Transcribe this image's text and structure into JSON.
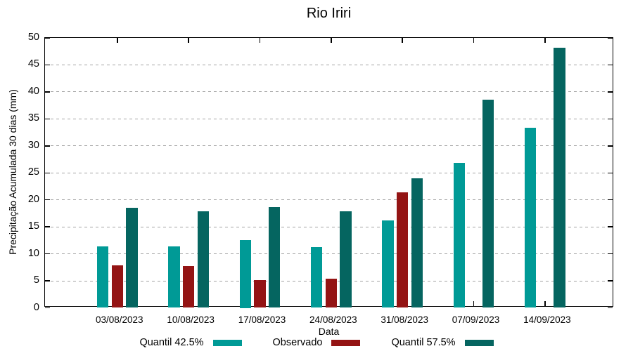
{
  "chart_data": {
    "type": "bar",
    "title": "Rio Iriri",
    "xlabel": "Data",
    "ylabel": "Precipitação Acumulada 30 dias (mm)",
    "ylim": [
      0,
      50
    ],
    "yticks": [
      0,
      5,
      10,
      15,
      20,
      25,
      30,
      35,
      40,
      45,
      50
    ],
    "grid": true,
    "legend_position": "bottom",
    "categories": [
      "03/08/2023",
      "10/08/2023",
      "17/08/2023",
      "24/08/2023",
      "31/08/2023",
      "07/09/2023",
      "14/09/2023"
    ],
    "series": [
      {
        "name": "Quantil 42.5%",
        "color": "#009a96",
        "values": [
          11.4,
          11.4,
          12.5,
          11.3,
          16.2,
          26.9,
          33.4
        ]
      },
      {
        "name": "Observado",
        "color": "#941414",
        "values": [
          7.9,
          7.7,
          5.2,
          5.4,
          21.4,
          null,
          null
        ]
      },
      {
        "name": "Quantil 57.5%",
        "color": "#056560",
        "values": [
          18.5,
          17.9,
          18.6,
          17.9,
          24.0,
          38.6,
          48.2
        ]
      }
    ],
    "colors": {
      "background": "#ffffff",
      "border": "#000000",
      "grid": "#a4a4a4",
      "text": "#000000"
    }
  }
}
